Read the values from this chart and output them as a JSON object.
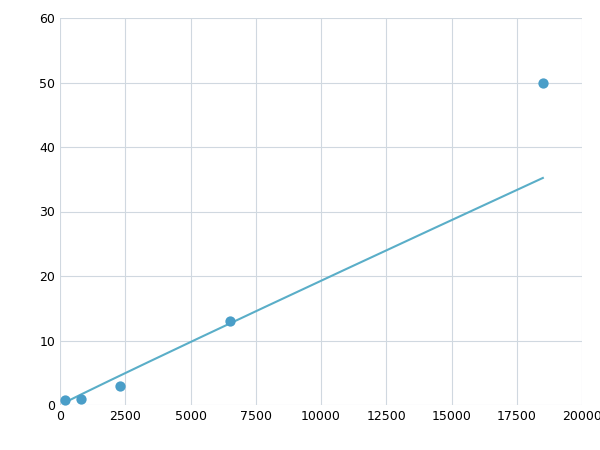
{
  "x_points": [
    200,
    800,
    2300,
    6500,
    18500
  ],
  "y_points": [
    0.7,
    1.0,
    3.0,
    13.0,
    50.0
  ],
  "line_color": "#5aaec8",
  "marker_color": "#4a9ec8",
  "marker_size": 55,
  "linewidth": 1.5,
  "xlim": [
    0,
    20000
  ],
  "ylim": [
    0,
    60
  ],
  "xticks": [
    0,
    2500,
    5000,
    7500,
    10000,
    12500,
    15000,
    17500,
    20000
  ],
  "yticks": [
    0,
    10,
    20,
    30,
    40,
    50,
    60
  ],
  "grid_color": "#d0d8e0",
  "bg_color": "#ffffff",
  "figsize": [
    6.0,
    4.5
  ],
  "dpi": 100
}
